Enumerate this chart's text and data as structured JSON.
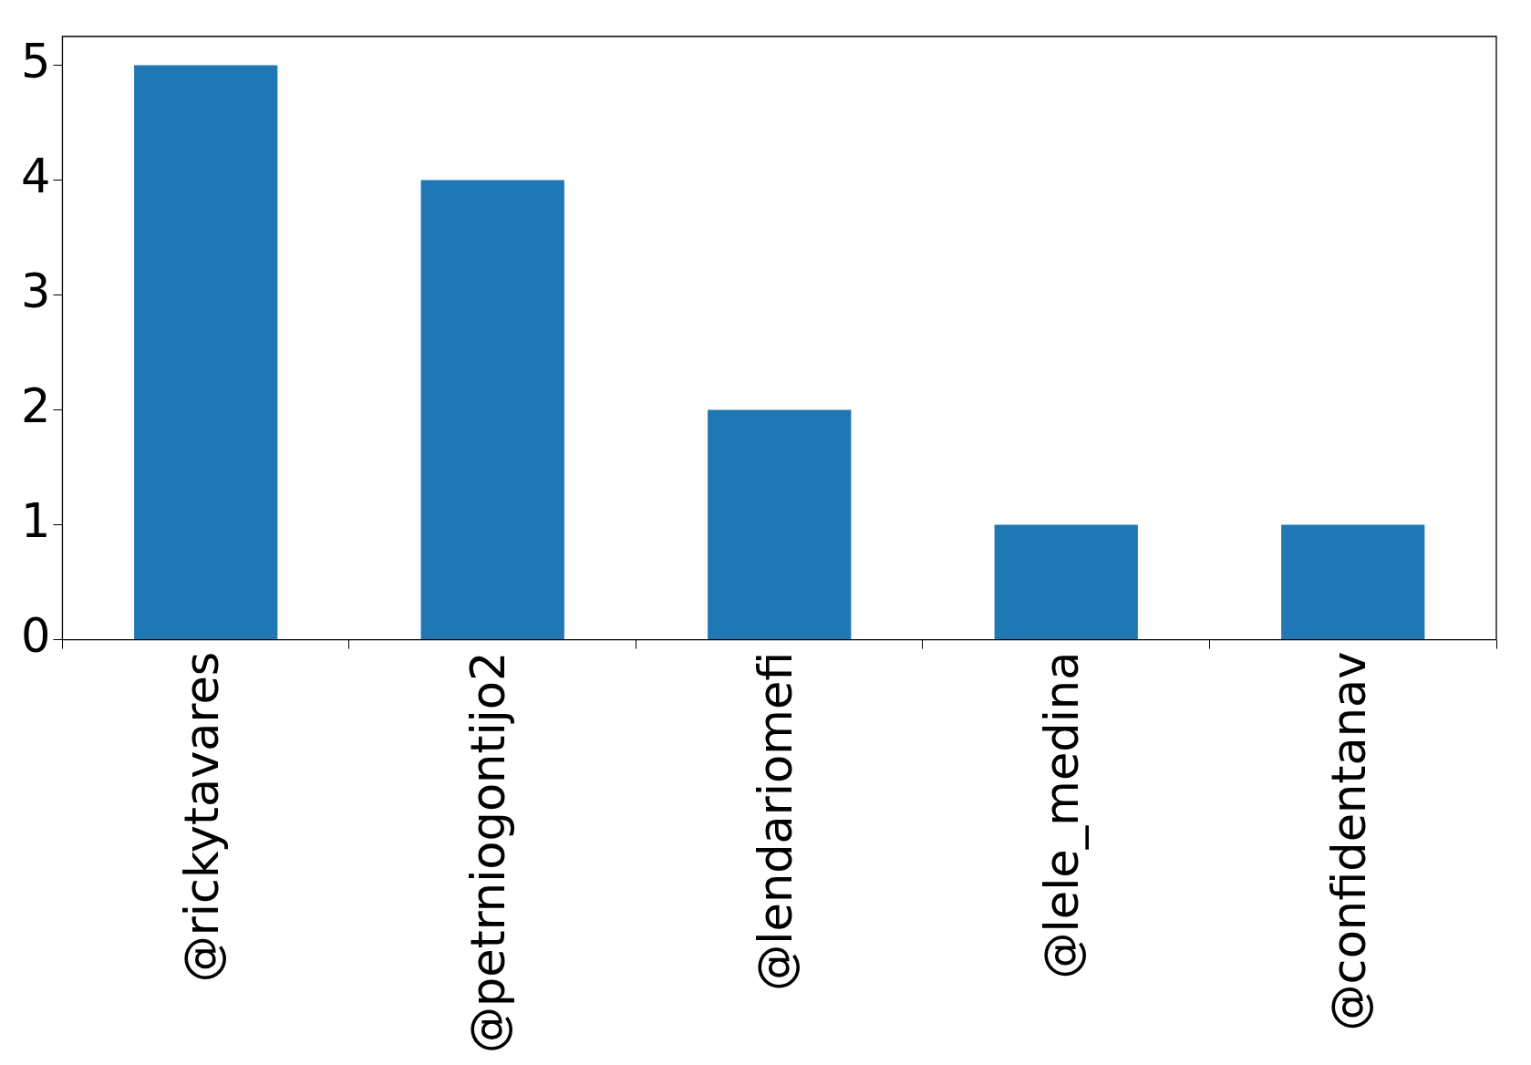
{
  "chart_data": {
    "type": "bar",
    "categories": [
      "@rickytavares",
      "@petrniogontijo2",
      "@lendariomefi",
      "@lele_medina",
      "@confidentanav"
    ],
    "values": [
      5,
      4,
      2,
      1,
      1
    ],
    "color": "#1f77b4",
    "ylim": [
      0,
      5.25
    ],
    "yticks": [
      0,
      1,
      2,
      3,
      4,
      5
    ],
    "grid": false,
    "legend": false
  }
}
